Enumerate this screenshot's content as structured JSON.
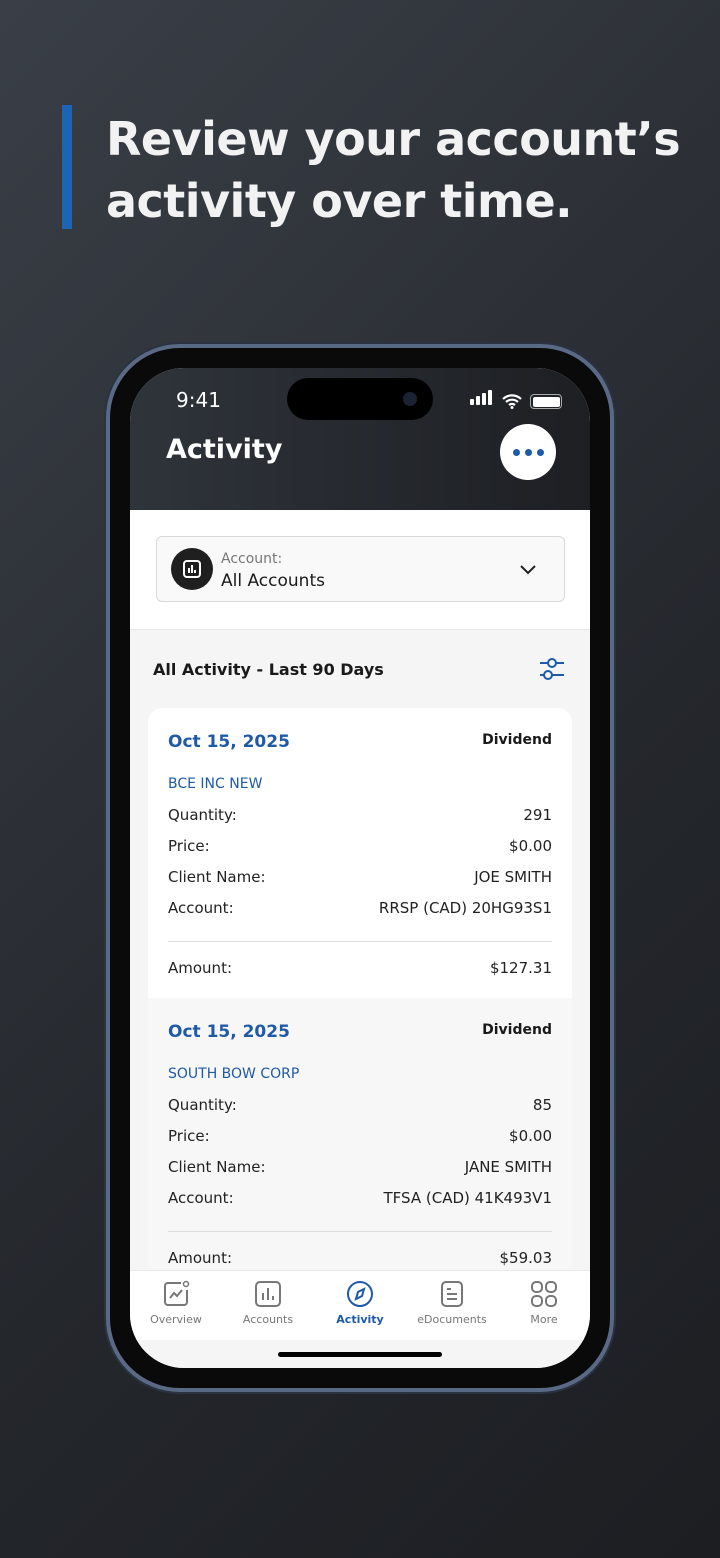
{
  "headline": "Review your account’s activity over time.",
  "status": {
    "time": "9:41"
  },
  "header": {
    "title": "Activity",
    "more_icon": "ellipsis-icon"
  },
  "account_selector": {
    "label": "Account:",
    "value": "All Accounts"
  },
  "section": {
    "title": "All Activity - Last 90 Days"
  },
  "labels": {
    "quantity": "Quantity:",
    "price": "Price:",
    "client": "Client Name:",
    "account": "Account:",
    "amount": "Amount:"
  },
  "transactions": [
    {
      "date": "Oct 15, 2025",
      "type": "Dividend",
      "security": "BCE INC NEW",
      "quantity": "291",
      "price": "$0.00",
      "client": "JOE SMITH",
      "account": "RRSP (CAD) 20HG93S1",
      "amount": "$127.31"
    },
    {
      "date": "Oct 15, 2025",
      "type": "Dividend",
      "security": "SOUTH BOW CORP",
      "quantity": "85",
      "price": "$0.00",
      "client": "JANE SMITH",
      "account": "TFSA (CAD) 41K493V1",
      "amount": "$59.03"
    }
  ],
  "tabs": [
    {
      "label": "Overview"
    },
    {
      "label": "Accounts"
    },
    {
      "label": "Activity",
      "active": true
    },
    {
      "label": "eDocuments"
    },
    {
      "label": "More"
    }
  ],
  "colors": {
    "accent": "#1e5aa8",
    "headline_bar": "#1e64b4"
  }
}
